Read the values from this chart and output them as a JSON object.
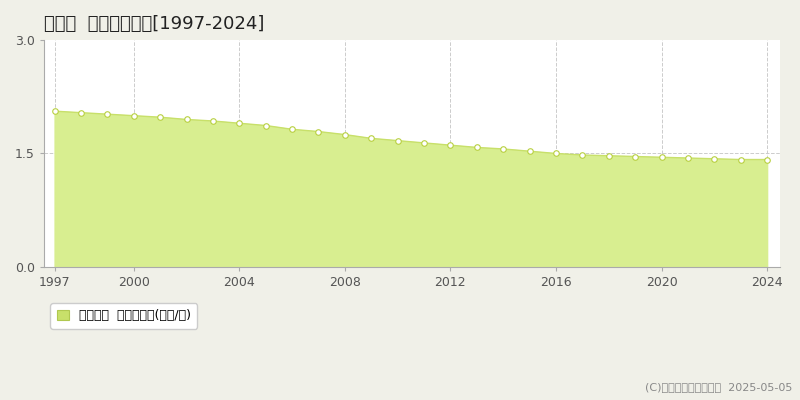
{
  "title": "髦川村  基準地価推移[1997-2024]",
  "years": [
    1997,
    1998,
    1999,
    2000,
    2001,
    2002,
    2003,
    2004,
    2005,
    2006,
    2007,
    2008,
    2009,
    2010,
    2011,
    2012,
    2013,
    2014,
    2015,
    2016,
    2017,
    2018,
    2019,
    2020,
    2021,
    2022,
    2023,
    2024
  ],
  "values": [
    2.06,
    2.04,
    2.02,
    2.0,
    1.98,
    1.95,
    1.93,
    1.9,
    1.87,
    1.82,
    1.79,
    1.75,
    1.7,
    1.67,
    1.64,
    1.61,
    1.58,
    1.56,
    1.53,
    1.5,
    1.48,
    1.47,
    1.46,
    1.45,
    1.44,
    1.43,
    1.42,
    1.42
  ],
  "line_color": "#c8e06a",
  "fill_color": "#d8ee90",
  "marker_facecolor": "#ffffff",
  "marker_edgecolor": "#b8d040",
  "plot_bg_color": "#ffffff",
  "outer_bg_color": "#f0f0e8",
  "grid_color": "#cccccc",
  "spine_color": "#aaaaaa",
  "ylim": [
    0,
    3
  ],
  "yticks": [
    0,
    1.5,
    3
  ],
  "xticks": [
    1997,
    2000,
    2004,
    2008,
    2012,
    2016,
    2020,
    2024
  ],
  "xlim_left": 1996.6,
  "xlim_right": 2024.5,
  "legend_label": "基準地価  平均坊単価(万円/坊)",
  "legend_patch_color": "#c8e06a",
  "legend_patch_edge": "#b0c850",
  "copyright_text": "(C)土地価格ドットコム  2025-05-05",
  "title_fontsize": 13,
  "axis_fontsize": 9,
  "legend_fontsize": 9,
  "copyright_fontsize": 8,
  "marker_size": 4,
  "line_width": 1.0
}
